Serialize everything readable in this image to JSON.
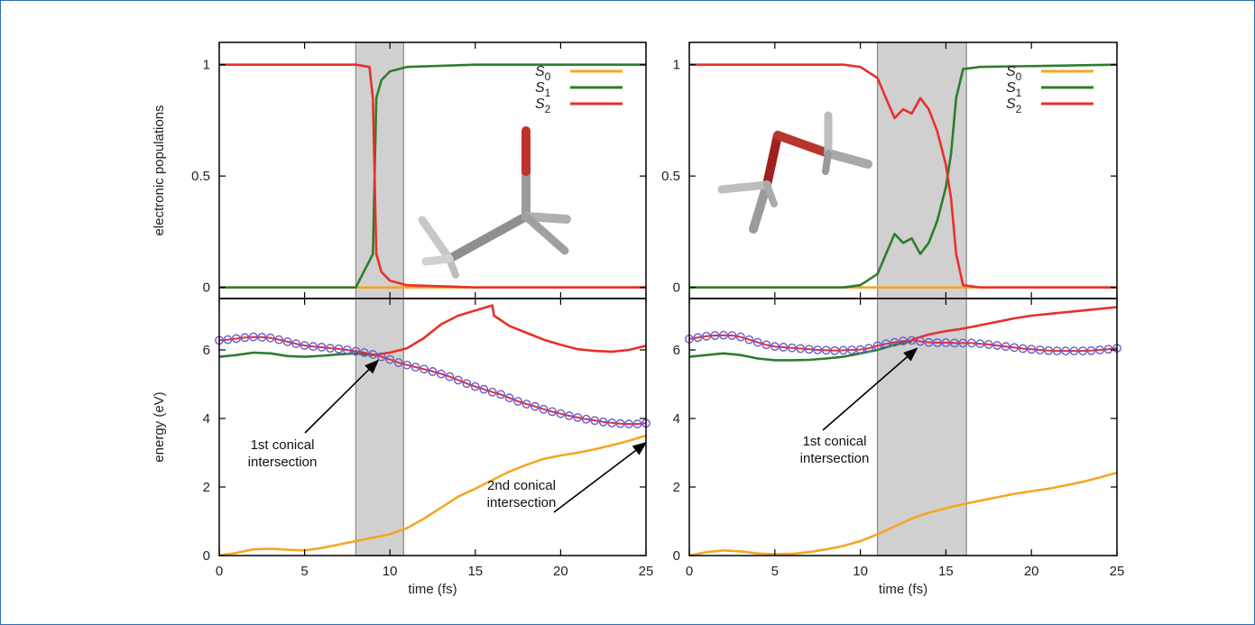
{
  "colors": {
    "S0": "#f5a623",
    "S1": "#2e7d2e",
    "S2": "#e8302a",
    "marker": "#6a5acd",
    "shade": "#c8c8c8"
  },
  "legend_labels": [
    {
      "base": "S",
      "sub": "0"
    },
    {
      "base": "S",
      "sub": "1"
    },
    {
      "base": "S",
      "sub": "2"
    }
  ],
  "chart_data": [
    {
      "type": "line",
      "panel": "top-left",
      "ylabel": "electronic populations",
      "xlim": [
        0,
        25
      ],
      "ylim": [
        -0.05,
        1.1
      ],
      "yticks": [
        "0",
        "0.5",
        "1"
      ],
      "shaded_interval": [
        8.0,
        10.8
      ],
      "legend": "top-right",
      "series": [
        {
          "name": "S0",
          "x": [
            0,
            9,
            10,
            25
          ],
          "y": [
            0,
            0,
            0,
            0
          ]
        },
        {
          "name": "S1",
          "x": [
            0,
            8,
            9,
            9.2,
            9.5,
            10,
            11,
            15,
            25
          ],
          "y": [
            0,
            0,
            0.15,
            0.85,
            0.93,
            0.97,
            0.99,
            1.0,
            1.0
          ]
        },
        {
          "name": "S2",
          "x": [
            0,
            8,
            8.8,
            9,
            9.2,
            9.5,
            10,
            11,
            15,
            25
          ],
          "y": [
            1,
            1,
            0.99,
            0.85,
            0.15,
            0.07,
            0.03,
            0.01,
            0,
            0
          ]
        }
      ]
    },
    {
      "type": "line",
      "panel": "top-right",
      "xlim": [
        0,
        25
      ],
      "ylim": [
        -0.05,
        1.1
      ],
      "yticks": [
        "0",
        "0.5",
        "1"
      ],
      "shaded_interval": [
        11.0,
        16.2
      ],
      "legend": "top-right",
      "series": [
        {
          "name": "S0",
          "x": [
            0,
            16,
            25
          ],
          "y": [
            0,
            0,
            0
          ]
        },
        {
          "name": "S1",
          "x": [
            0,
            9,
            10,
            11,
            11.5,
            12,
            12.5,
            13,
            13.5,
            14,
            14.5,
            15,
            15.3,
            15.6,
            16,
            17,
            25
          ],
          "y": [
            0,
            0,
            0.01,
            0.06,
            0.15,
            0.24,
            0.2,
            0.22,
            0.15,
            0.2,
            0.3,
            0.45,
            0.6,
            0.85,
            0.98,
            0.99,
            1.0
          ]
        },
        {
          "name": "S2",
          "x": [
            0,
            9,
            10,
            11,
            11.5,
            12,
            12.5,
            13,
            13.5,
            14,
            14.5,
            15,
            15.3,
            15.6,
            16,
            17,
            25
          ],
          "y": [
            1,
            1,
            0.99,
            0.94,
            0.85,
            0.76,
            0.8,
            0.78,
            0.85,
            0.8,
            0.7,
            0.55,
            0.4,
            0.15,
            0.01,
            0,
            0
          ]
        }
      ]
    },
    {
      "type": "line",
      "panel": "bottom-left",
      "ylabel": "energy (eV)",
      "xlabel": "time (fs)",
      "xlim": [
        0,
        25
      ],
      "ylim": [
        0,
        7.5
      ],
      "xticks": [
        "0",
        "5",
        "10",
        "15",
        "20",
        "25"
      ],
      "yticks": [
        "0",
        "2",
        "4",
        "6"
      ],
      "shaded_interval": [
        8.0,
        10.8
      ],
      "annotations": [
        {
          "lines": [
            "1st conical",
            "intersection"
          ],
          "point": [
            9.3,
            5.85
          ]
        },
        {
          "lines": [
            "2nd conical",
            "intersection"
          ],
          "point": [
            25,
            3.45
          ]
        }
      ],
      "series": [
        {
          "name": "S0",
          "x": [
            0,
            1,
            2,
            3,
            4,
            5,
            6,
            7,
            8,
            9,
            10,
            11,
            12,
            13,
            14,
            15,
            16,
            17,
            18,
            19,
            20,
            21,
            22,
            23,
            24,
            25
          ],
          "y": [
            0.0,
            0.08,
            0.18,
            0.2,
            0.17,
            0.15,
            0.22,
            0.32,
            0.42,
            0.52,
            0.62,
            0.8,
            1.08,
            1.4,
            1.72,
            1.95,
            2.2,
            2.45,
            2.65,
            2.82,
            2.92,
            3.0,
            3.1,
            3.22,
            3.35,
            3.5
          ]
        },
        {
          "name": "S1",
          "x": [
            0,
            1,
            2,
            3,
            4,
            5,
            6,
            7,
            8,
            9
          ],
          "y": [
            5.8,
            5.85,
            5.92,
            5.9,
            5.82,
            5.8,
            5.83,
            5.87,
            5.9,
            5.85
          ]
        },
        {
          "name": "S2",
          "x": [
            9,
            10,
            11,
            12,
            13,
            14,
            15,
            16,
            16.1,
            17,
            18,
            19,
            20,
            21,
            22,
            23,
            24,
            25
          ],
          "y": [
            5.85,
            5.92,
            6.05,
            6.35,
            6.75,
            7.0,
            7.15,
            7.3,
            7.0,
            6.7,
            6.5,
            6.3,
            6.15,
            6.02,
            5.97,
            5.95,
            6.0,
            6.12
          ]
        },
        {
          "name": "trajectory",
          "x": [
            0,
            0.5,
            1,
            1.5,
            2,
            2.5,
            3,
            3.5,
            4,
            4.5,
            5,
            5.5,
            6,
            6.5,
            7,
            7.5,
            8,
            8.5,
            9,
            9.5,
            10,
            10.5,
            11,
            11.5,
            12,
            12.5,
            13,
            13.5,
            14,
            14.5,
            15,
            15.5,
            16,
            16.5,
            17,
            17.5,
            18,
            18.5,
            19,
            19.5,
            20,
            20.5,
            21,
            21.5,
            22,
            22.5,
            23,
            23.5,
            24,
            24.5,
            25
          ],
          "y": [
            6.28,
            6.3,
            6.33,
            6.36,
            6.38,
            6.37,
            6.35,
            6.3,
            6.24,
            6.18,
            6.13,
            6.1,
            6.08,
            6.05,
            6.03,
            6.0,
            5.96,
            5.92,
            5.87,
            5.8,
            5.72,
            5.63,
            5.56,
            5.5,
            5.44,
            5.37,
            5.3,
            5.22,
            5.12,
            5.02,
            4.93,
            4.85,
            4.77,
            4.7,
            4.6,
            4.5,
            4.42,
            4.35,
            4.27,
            4.2,
            4.14,
            4.08,
            4.03,
            3.98,
            3.94,
            3.9,
            3.87,
            3.85,
            3.84,
            3.84,
            3.86
          ]
        }
      ]
    },
    {
      "type": "line",
      "panel": "bottom-right",
      "xlabel": "time (fs)",
      "xlim": [
        0,
        25
      ],
      "ylim": [
        0,
        7.5
      ],
      "xticks": [
        "0",
        "5",
        "10",
        "15",
        "20",
        "25"
      ],
      "yticks": [
        "0",
        "2",
        "4",
        "6"
      ],
      "shaded_interval": [
        11.0,
        16.2
      ],
      "annotations": [
        {
          "lines": [
            "1st conical",
            "intersection"
          ],
          "point": [
            13.3,
            6.2
          ]
        }
      ],
      "series": [
        {
          "name": "S0",
          "x": [
            0,
            1,
            2,
            3,
            4,
            5,
            6,
            7,
            8,
            9,
            10,
            11,
            12,
            13,
            14,
            15,
            16,
            17,
            18,
            19,
            20,
            21,
            22,
            23,
            24,
            25
          ],
          "y": [
            0.0,
            0.1,
            0.15,
            0.12,
            0.06,
            0.04,
            0.05,
            0.1,
            0.18,
            0.28,
            0.42,
            0.62,
            0.85,
            1.08,
            1.25,
            1.38,
            1.5,
            1.6,
            1.7,
            1.8,
            1.88,
            1.95,
            2.05,
            2.15,
            2.28,
            2.42
          ]
        },
        {
          "name": "S1",
          "x": [
            0,
            1,
            2,
            3,
            4,
            5,
            6,
            7,
            8,
            9,
            10,
            11,
            12,
            13
          ],
          "y": [
            5.8,
            5.85,
            5.9,
            5.85,
            5.75,
            5.7,
            5.7,
            5.71,
            5.75,
            5.8,
            5.9,
            6.0,
            6.15,
            6.25
          ]
        },
        {
          "name": "S2",
          "x": [
            13,
            14,
            15,
            16,
            17,
            18,
            19,
            20,
            21,
            22,
            23,
            24,
            25
          ],
          "y": [
            6.3,
            6.45,
            6.55,
            6.62,
            6.72,
            6.82,
            6.92,
            7.0,
            7.05,
            7.1,
            7.15,
            7.2,
            7.25
          ]
        },
        {
          "name": "trajectory",
          "x": [
            0,
            0.5,
            1,
            1.5,
            2,
            2.5,
            3,
            3.5,
            4,
            4.5,
            5,
            5.5,
            6,
            6.5,
            7,
            7.5,
            8,
            8.5,
            9,
            9.5,
            10,
            10.5,
            11,
            11.5,
            12,
            12.5,
            13,
            13.5,
            14,
            14.5,
            15,
            15.5,
            16,
            16.5,
            17,
            17.5,
            18,
            18.5,
            19,
            19.5,
            20,
            20.5,
            21,
            21.5,
            22,
            22.5,
            23,
            23.5,
            24,
            24.5,
            25
          ],
          "y": [
            6.32,
            6.36,
            6.4,
            6.42,
            6.43,
            6.42,
            6.38,
            6.3,
            6.22,
            6.15,
            6.1,
            6.08,
            6.06,
            6.04,
            6.02,
            6.0,
            5.99,
            5.98,
            5.99,
            6.0,
            6.01,
            6.05,
            6.12,
            6.18,
            6.22,
            6.26,
            6.28,
            6.25,
            6.22,
            6.21,
            6.21,
            6.2,
            6.2,
            6.2,
            6.18,
            6.16,
            6.13,
            6.1,
            6.07,
            6.04,
            6.02,
            6.0,
            5.98,
            5.97,
            5.97,
            5.97,
            5.97,
            5.98,
            6.0,
            6.02,
            6.05
          ]
        }
      ]
    }
  ]
}
